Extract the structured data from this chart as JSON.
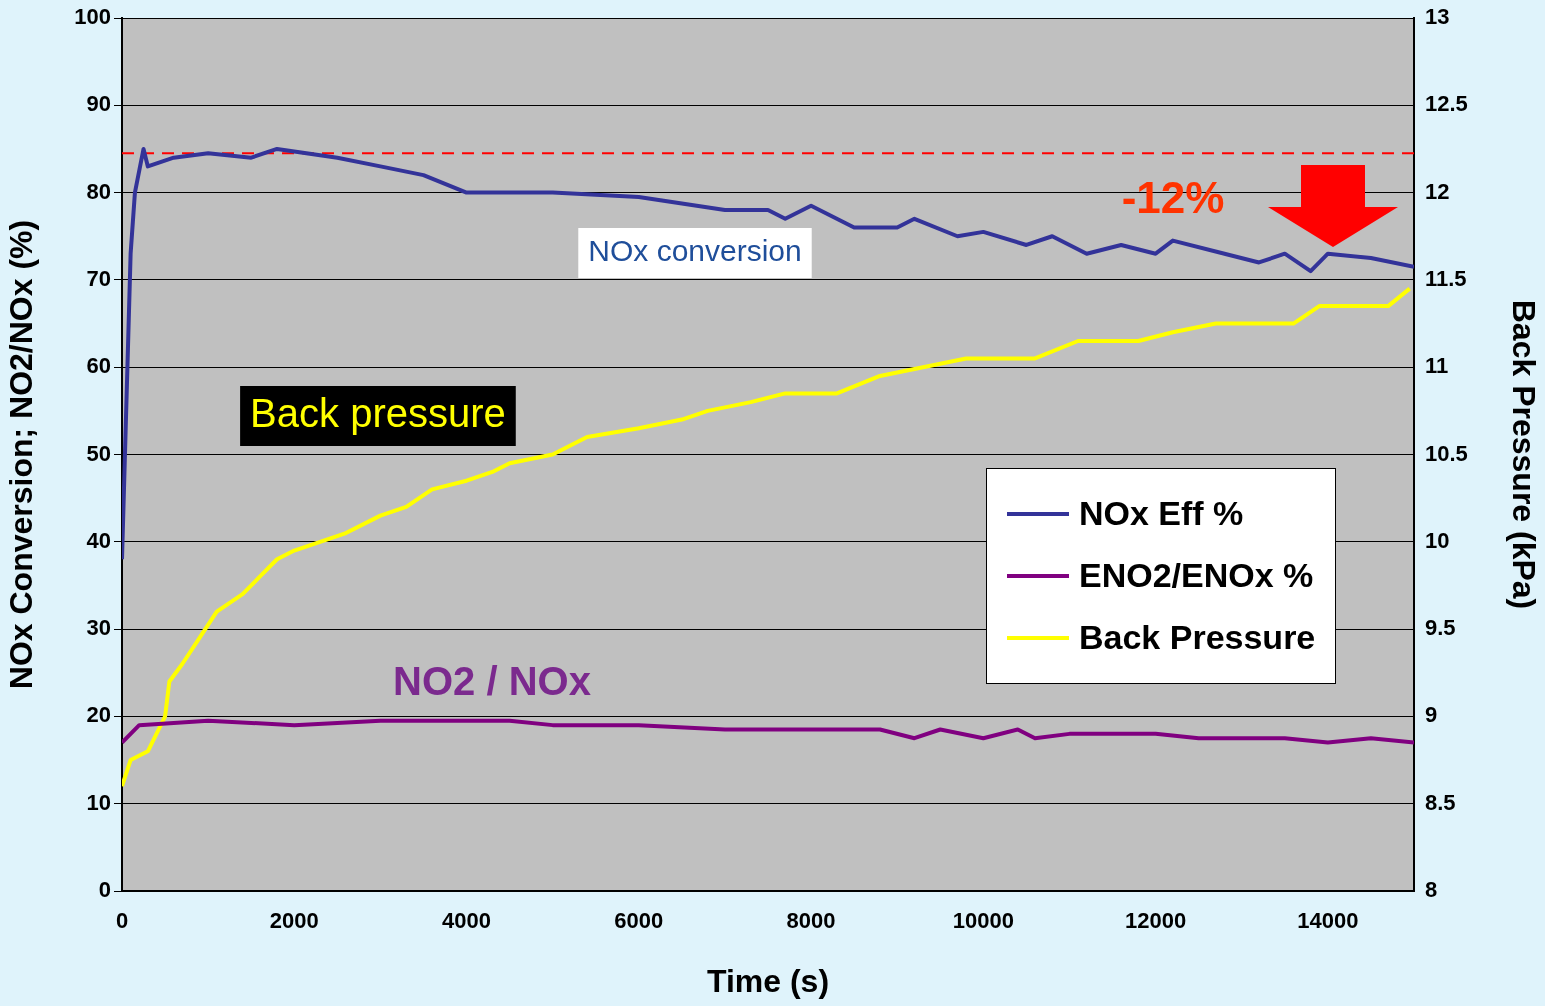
{
  "chart_data": {
    "type": "line",
    "xlabel": "Time (s)",
    "ylabel": "NOx Conversion; NO2/NOx (%)",
    "y2label": "Back Pressure (kPa)",
    "xlim": [
      0,
      15000
    ],
    "xticks": [
      0,
      2000,
      4000,
      6000,
      8000,
      10000,
      12000,
      14000
    ],
    "ylim": [
      0,
      100
    ],
    "yticks": [
      0,
      10,
      20,
      30,
      40,
      50,
      60,
      70,
      80,
      90,
      100
    ],
    "y2lim": [
      8,
      13
    ],
    "y2ticks": [
      8,
      8.5,
      9,
      9.5,
      10,
      10.5,
      11,
      11.5,
      12,
      12.5,
      13
    ],
    "grid": "y",
    "legend": "right",
    "marker": "none",
    "line_style": "solid",
    "series": [
      {
        "name": "NOx Eff %",
        "color": "#333399",
        "x": [
          0,
          100,
          150,
          250,
          300,
          600,
          1000,
          1500,
          1800,
          2500,
          3000,
          3500,
          4000,
          5000,
          6000,
          7000,
          7500,
          7700,
          8000,
          8500,
          9000,
          9200,
          9700,
          10000,
          10500,
          10800,
          11200,
          11600,
          12000,
          12200,
          12800,
          13200,
          13500,
          13800,
          14000,
          14500,
          15000
        ],
        "values": [
          38,
          73,
          80,
          85,
          83,
          84,
          84.5,
          84,
          85,
          84,
          83,
          82,
          80,
          80,
          79.5,
          78,
          78,
          77,
          78.5,
          76,
          76,
          77,
          75,
          75.5,
          74,
          75,
          73,
          74,
          73,
          74.5,
          73,
          72,
          73,
          71,
          73,
          72.5,
          71.5
        ]
      },
      {
        "name": "ENO2/ENOx %",
        "color": "#800080",
        "x": [
          0,
          200,
          1000,
          2000,
          3000,
          4500,
          5000,
          6000,
          7000,
          8000,
          8800,
          9200,
          9500,
          10000,
          10400,
          10600,
          11000,
          12000,
          12500,
          13500,
          14000,
          14500,
          15000
        ],
        "values": [
          17,
          19,
          19.5,
          19,
          19.5,
          19.5,
          19,
          19,
          18.5,
          18.5,
          18.5,
          17.5,
          18.5,
          17.5,
          18.5,
          17.5,
          18,
          18,
          17.5,
          17.5,
          17,
          17.5,
          17
        ]
      },
      {
        "name": "Back Pressure",
        "color": "#ffff00",
        "axis": "y2",
        "x": [
          0,
          100,
          300,
          500,
          550,
          700,
          900,
          1100,
          1400,
          1600,
          1800,
          2000,
          2300,
          2600,
          3000,
          3300,
          3600,
          4000,
          4300,
          4500,
          5000,
          5400,
          6000,
          6500,
          6800,
          7300,
          7700,
          8300,
          8800,
          9300,
          9800,
          10600,
          11100,
          11800,
          12200,
          12700,
          13600,
          13900,
          14700,
          14950
        ],
        "values": [
          8.6,
          8.75,
          8.8,
          9,
          9.2,
          9.3,
          9.45,
          9.6,
          9.7,
          9.8,
          9.9,
          9.95,
          10,
          10.05,
          10.15,
          10.2,
          10.3,
          10.35,
          10.4,
          10.45,
          10.5,
          10.6,
          10.65,
          10.7,
          10.75,
          10.8,
          10.85,
          10.85,
          10.95,
          11,
          11.05,
          11.05,
          11.15,
          11.15,
          11.2,
          11.25,
          11.25,
          11.35,
          11.35,
          11.45
        ]
      }
    ],
    "ref_lines": [
      {
        "axis": "y",
        "value": 84.5,
        "color": "#ff0000",
        "line_style": "dashed"
      }
    ],
    "annotations": [
      "NOx conversion",
      "Back pressure",
      "NO2 / NOx",
      "-12%"
    ]
  }
}
